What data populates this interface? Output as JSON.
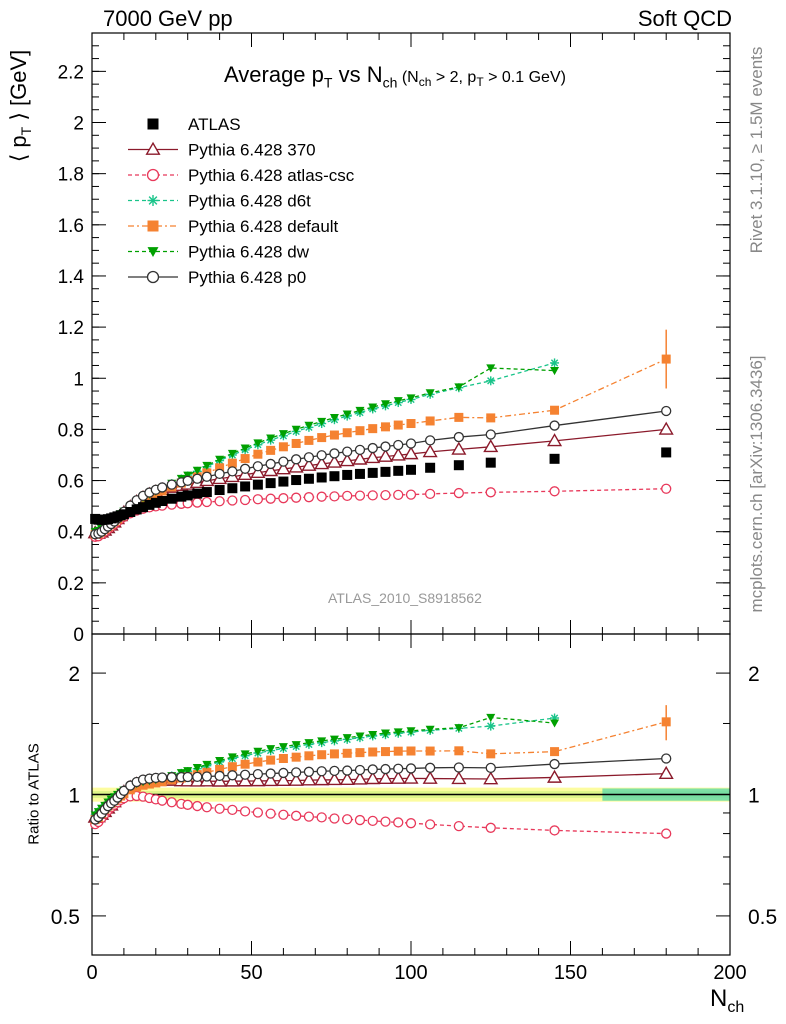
{
  "header": {
    "left": "7000 GeV pp",
    "right": "Soft QCD"
  },
  "side": {
    "rivet": "Rivet 3.1.10, ≥ 1.5M events",
    "mcplots": "mcplots.cern.ch [arXiv:1306.3436]"
  },
  "analysis_id": "ATLAS_2010_S8918562",
  "chart_data": [
    {
      "type": "scatter",
      "title_parts": {
        "main": "Average p",
        "sub_t": "T",
        "vs": " vs N",
        "sub_ch": "ch",
        "cond": " (N",
        "cond_sub_ch": "ch",
        "cond_mid": " > 2, p",
        "cond_sub_t": "T",
        "cond_end": " > 0.1 GeV)"
      },
      "ylabel_parts": {
        "open": "⟨ p",
        "sub": "T",
        "close": " ⟩  [GeV]"
      },
      "xlabel_parts": {
        "main": "N",
        "sub": "ch"
      },
      "xlim": [
        0,
        200
      ],
      "ylim": [
        0,
        2.35
      ],
      "y_ticks": [
        0,
        0.2,
        0.4,
        0.6,
        0.8,
        1,
        1.2,
        1.4,
        1.6,
        1.8,
        2,
        2.2
      ],
      "y_tick_labels": [
        "0",
        "0.2",
        "0.4",
        "0.6",
        "0.8",
        "1",
        "1.2",
        "1.4",
        "1.6",
        "1.8",
        "2",
        "2.2"
      ],
      "legend_position": "top-left",
      "series": [
        {
          "name": "ATLAS",
          "color": "#000000",
          "marker": "square",
          "x": [
            1,
            2,
            3,
            4,
            5,
            6,
            7,
            8,
            9,
            10,
            12,
            14,
            16,
            18,
            20,
            22,
            25,
            28,
            30,
            33,
            36,
            40,
            44,
            48,
            52,
            56,
            60,
            64,
            68,
            72,
            76,
            80,
            84,
            88,
            92,
            96,
            100,
            106,
            115,
            125,
            145,
            180
          ],
          "y": [
            0.45,
            0.447,
            0.446,
            0.447,
            0.449,
            0.452,
            0.456,
            0.46,
            0.464,
            0.468,
            0.477,
            0.487,
            0.496,
            0.505,
            0.513,
            0.52,
            0.529,
            0.537,
            0.542,
            0.549,
            0.555,
            0.563,
            0.57,
            0.577,
            0.584,
            0.59,
            0.596,
            0.602,
            0.607,
            0.612,
            0.617,
            0.622,
            0.626,
            0.63,
            0.634,
            0.638,
            0.642,
            0.65,
            0.66,
            0.67,
            0.685,
            0.71
          ]
        },
        {
          "name": "Pythia 6.428 370",
          "color": "#8b1a2b",
          "marker": "triangle-open",
          "dash": "",
          "x": [
            1,
            2,
            3,
            4,
            5,
            6,
            7,
            8,
            9,
            10,
            12,
            14,
            16,
            18,
            20,
            22,
            25,
            28,
            30,
            33,
            36,
            40,
            44,
            48,
            52,
            56,
            60,
            64,
            68,
            72,
            76,
            80,
            84,
            88,
            92,
            96,
            100,
            106,
            115,
            125,
            145,
            180
          ],
          "y": [
            0.395,
            0.393,
            0.398,
            0.405,
            0.415,
            0.425,
            0.437,
            0.45,
            0.462,
            0.475,
            0.497,
            0.517,
            0.533,
            0.546,
            0.556,
            0.564,
            0.573,
            0.58,
            0.585,
            0.592,
            0.599,
            0.607,
            0.615,
            0.623,
            0.631,
            0.638,
            0.645,
            0.652,
            0.659,
            0.665,
            0.671,
            0.677,
            0.683,
            0.689,
            0.694,
            0.699,
            0.704,
            0.712,
            0.722,
            0.732,
            0.755,
            0.8
          ]
        },
        {
          "name": "Pythia 6.428 atlas-csc",
          "color": "#e8385a",
          "marker": "circle-open",
          "dash": "4,3",
          "x": [
            1,
            2,
            3,
            4,
            5,
            6,
            7,
            8,
            9,
            10,
            12,
            14,
            16,
            18,
            20,
            22,
            25,
            28,
            30,
            33,
            36,
            40,
            44,
            48,
            52,
            56,
            60,
            64,
            68,
            72,
            76,
            80,
            84,
            88,
            92,
            96,
            100,
            106,
            115,
            125,
            145,
            180
          ],
          "y": [
            0.38,
            0.382,
            0.39,
            0.4,
            0.41,
            0.42,
            0.43,
            0.44,
            0.45,
            0.458,
            0.472,
            0.483,
            0.49,
            0.495,
            0.499,
            0.502,
            0.506,
            0.509,
            0.511,
            0.514,
            0.516,
            0.519,
            0.522,
            0.524,
            0.527,
            0.529,
            0.531,
            0.533,
            0.535,
            0.537,
            0.538,
            0.54,
            0.541,
            0.542,
            0.543,
            0.544,
            0.545,
            0.548,
            0.551,
            0.554,
            0.558,
            0.568
          ]
        },
        {
          "name": "Pythia 6.428 d6t",
          "color": "#19c48a",
          "marker": "star",
          "dash": "4,3",
          "x": [
            1,
            2,
            3,
            4,
            5,
            6,
            7,
            8,
            9,
            10,
            12,
            14,
            16,
            18,
            20,
            22,
            25,
            28,
            30,
            33,
            36,
            40,
            44,
            48,
            52,
            56,
            60,
            64,
            68,
            72,
            76,
            80,
            84,
            88,
            92,
            96,
            100,
            106,
            115,
            125,
            145
          ],
          "y": [
            0.4,
            0.405,
            0.412,
            0.42,
            0.43,
            0.44,
            0.45,
            0.46,
            0.47,
            0.48,
            0.5,
            0.518,
            0.533,
            0.546,
            0.558,
            0.57,
            0.588,
            0.606,
            0.618,
            0.636,
            0.654,
            0.678,
            0.7,
            0.72,
            0.74,
            0.758,
            0.775,
            0.792,
            0.808,
            0.823,
            0.838,
            0.852,
            0.866,
            0.88,
            0.892,
            0.905,
            0.917,
            0.937,
            0.963,
            0.99,
            1.06
          ]
        },
        {
          "name": "Pythia 6.428 default",
          "color": "#f58231",
          "marker": "square",
          "dash": "6,3,2,3",
          "x": [
            1,
            2,
            3,
            4,
            5,
            6,
            7,
            8,
            9,
            10,
            12,
            14,
            16,
            18,
            20,
            22,
            25,
            28,
            30,
            33,
            36,
            40,
            44,
            48,
            52,
            56,
            60,
            64,
            68,
            72,
            76,
            80,
            84,
            88,
            92,
            96,
            100,
            106,
            115,
            125,
            145,
            180
          ],
          "y": [
            0.39,
            0.392,
            0.4,
            0.41,
            0.42,
            0.43,
            0.44,
            0.45,
            0.46,
            0.47,
            0.49,
            0.508,
            0.523,
            0.536,
            0.548,
            0.559,
            0.575,
            0.59,
            0.6,
            0.615,
            0.63,
            0.65,
            0.668,
            0.686,
            0.703,
            0.718,
            0.732,
            0.745,
            0.757,
            0.768,
            0.778,
            0.787,
            0.795,
            0.803,
            0.81,
            0.817,
            0.823,
            0.833,
            0.847,
            0.845,
            0.875,
            1.075
          ]
        },
        {
          "name": "Pythia 6.428 dw",
          "color": "#00a000",
          "marker": "triangle-down",
          "dash": "4,3",
          "x": [
            1,
            2,
            3,
            4,
            5,
            6,
            7,
            8,
            9,
            10,
            12,
            14,
            16,
            18,
            20,
            22,
            25,
            28,
            30,
            33,
            36,
            40,
            44,
            48,
            52,
            56,
            60,
            64,
            68,
            72,
            76,
            80,
            84,
            88,
            92,
            96,
            100,
            106,
            115,
            125,
            145
          ],
          "y": [
            0.4,
            0.405,
            0.412,
            0.42,
            0.43,
            0.44,
            0.45,
            0.46,
            0.47,
            0.48,
            0.5,
            0.518,
            0.533,
            0.546,
            0.558,
            0.57,
            0.589,
            0.608,
            0.621,
            0.64,
            0.659,
            0.683,
            0.706,
            0.727,
            0.747,
            0.766,
            0.783,
            0.8,
            0.816,
            0.831,
            0.846,
            0.86,
            0.874,
            0.887,
            0.9,
            0.912,
            0.923,
            0.943,
            0.966,
            1.04,
            1.03
          ]
        },
        {
          "name": "Pythia 6.428 p0",
          "color": "#333333",
          "marker": "circle-open",
          "dash": "",
          "x": [
            1,
            2,
            3,
            4,
            5,
            6,
            7,
            8,
            9,
            10,
            12,
            14,
            16,
            18,
            20,
            22,
            25,
            28,
            30,
            33,
            36,
            40,
            44,
            48,
            52,
            56,
            60,
            64,
            68,
            72,
            76,
            80,
            84,
            88,
            92,
            96,
            100,
            106,
            115,
            125,
            145,
            180
          ],
          "y": [
            0.39,
            0.393,
            0.4,
            0.41,
            0.42,
            0.43,
            0.44,
            0.452,
            0.465,
            0.478,
            0.502,
            0.523,
            0.54,
            0.553,
            0.564,
            0.573,
            0.584,
            0.593,
            0.599,
            0.607,
            0.615,
            0.626,
            0.636,
            0.646,
            0.656,
            0.665,
            0.674,
            0.683,
            0.691,
            0.699,
            0.706,
            0.713,
            0.72,
            0.727,
            0.733,
            0.739,
            0.745,
            0.757,
            0.77,
            0.78,
            0.815,
            0.872
          ]
        }
      ]
    },
    {
      "type": "line",
      "ylabel": "Ratio to ATLAS",
      "yscale": "log",
      "xlim": [
        0,
        200
      ],
      "ylim": [
        0.4,
        2.5
      ],
      "y_ticks": [
        0.5,
        1,
        2
      ],
      "y_tick_labels": [
        "0.5",
        "1",
        "2"
      ],
      "x_ticks": [
        0,
        50,
        100,
        150,
        200
      ],
      "x_tick_labels": [
        "0",
        "50",
        "100",
        "150",
        "200"
      ]
    }
  ]
}
